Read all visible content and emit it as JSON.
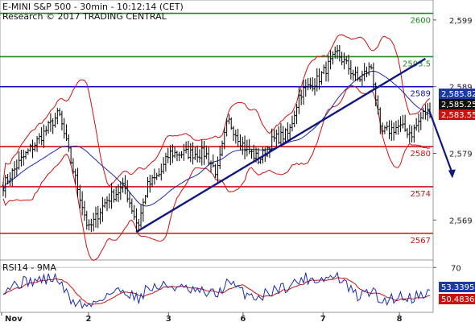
{
  "header": {
    "line1": "E-MINI S&P 500 - 30min - 10:12:14 (CET)",
    "line2": "Research © 2017 TRADING CENTRAL"
  },
  "chart_data": [
    {
      "type": "candlestick",
      "ylim": [
        2563,
        2602
      ],
      "y_ticks": [
        {
          "value": 2599,
          "label": "2,599"
        },
        {
          "value": 2589,
          "label": "2,589"
        },
        {
          "value": 2579,
          "label": "2,579"
        },
        {
          "value": 2569,
          "label": "2,569"
        }
      ],
      "x_ticks": [
        {
          "at": 0,
          "label": "Nov"
        },
        {
          "at": 95,
          "label": "2"
        },
        {
          "at": 184,
          "label": "3"
        },
        {
          "at": 267,
          "label": "6"
        },
        {
          "at": 356,
          "label": "7"
        },
        {
          "at": 441,
          "label": "8"
        }
      ],
      "levels": [
        {
          "value": 2600,
          "label": "2600",
          "color": "#1a8a1a"
        },
        {
          "value": 2593.5,
          "label": "2593.5",
          "color": "#1a8a1a"
        },
        {
          "value": 2589,
          "label": "2589",
          "color": "#1010c0"
        },
        {
          "value": 2580,
          "label": "2580",
          "color": "#d01010"
        },
        {
          "value": 2574,
          "label": "2574",
          "color": "#d01010"
        },
        {
          "value": 2567,
          "label": "2567",
          "color": "#d01010"
        }
      ],
      "price_tags": [
        {
          "value": 2585.82,
          "label": "2,585.82",
          "color": "#1a3aa0"
        },
        {
          "value": 2585.25,
          "label": "2,585.25",
          "color": "#111111"
        },
        {
          "value": 2583.55,
          "label": "2,583.55",
          "color": "#d01010"
        }
      ],
      "series_anchors": [
        [
          0,
          2574.2
        ],
        [
          20,
          2578
        ],
        [
          45,
          2582
        ],
        [
          62,
          2585
        ],
        [
          75,
          2578
        ],
        [
          95,
          2567.5
        ],
        [
          115,
          2572
        ],
        [
          135,
          2574
        ],
        [
          150,
          2568
        ],
        [
          160,
          2574
        ],
        [
          175,
          2576
        ],
        [
          185,
          2579
        ],
        [
          205,
          2579
        ],
        [
          225,
          2579
        ],
        [
          238,
          2576
        ],
        [
          250,
          2584
        ],
        [
          268,
          2580
        ],
        [
          285,
          2578
        ],
        [
          300,
          2581
        ],
        [
          318,
          2582
        ],
        [
          330,
          2588
        ],
        [
          350,
          2590
        ],
        [
          372,
          2594
        ],
        [
          395,
          2590
        ],
        [
          410,
          2592
        ],
        [
          420,
          2582
        ],
        [
          440,
          2583
        ],
        [
          455,
          2582
        ],
        [
          468,
          2585
        ],
        [
          475,
          2585.3
        ]
      ],
      "trendline": [
        [
          148,
          2567.2
        ],
        [
          470,
          2593.2
        ]
      ],
      "forecast_arrow": [
        [
          474,
          2585.5
        ],
        [
          500,
          2575.5
        ]
      ]
    },
    {
      "type": "line",
      "title": "RSI14 - 9MA",
      "ylim": [
        40,
        75
      ],
      "y_ticks": [
        {
          "value": 70,
          "label": "70"
        }
      ],
      "series_anchors": [
        [
          0,
          56
        ],
        [
          20,
          60
        ],
        [
          45,
          62
        ],
        [
          60,
          63
        ],
        [
          75,
          48
        ],
        [
          95,
          44
        ],
        [
          115,
          52
        ],
        [
          135,
          55
        ],
        [
          150,
          49
        ],
        [
          160,
          56
        ],
        [
          185,
          58
        ],
        [
          210,
          54
        ],
        [
          238,
          52
        ],
        [
          250,
          60
        ],
        [
          268,
          53
        ],
        [
          285,
          50
        ],
        [
          300,
          55
        ],
        [
          320,
          58
        ],
        [
          335,
          63
        ],
        [
          350,
          62
        ],
        [
          372,
          64
        ],
        [
          395,
          50
        ],
        [
          410,
          55
        ],
        [
          420,
          47
        ],
        [
          440,
          51
        ],
        [
          455,
          50
        ],
        [
          468,
          53
        ],
        [
          475,
          53.3
        ]
      ],
      "tags": [
        {
          "value": 53.3395,
          "label": "53.3395",
          "color": "#1a3aa0"
        },
        {
          "value": 50.4836,
          "label": "50.4836",
          "color": "#d01010"
        }
      ]
    }
  ]
}
